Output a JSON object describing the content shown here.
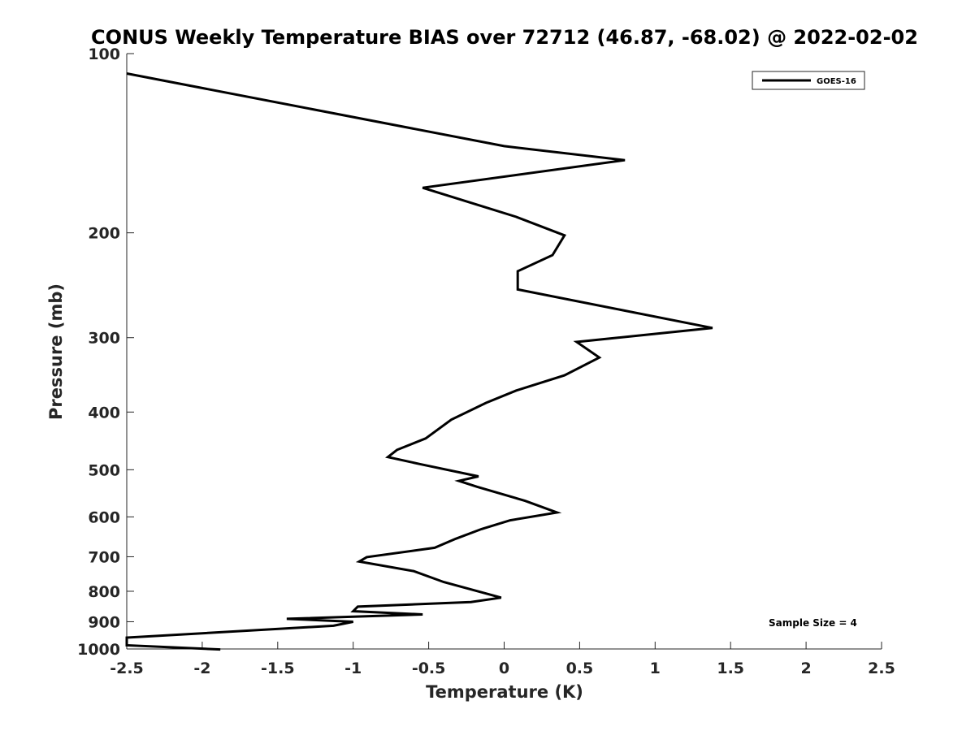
{
  "chart_data": {
    "type": "line",
    "title": "CONUS Weekly Temperature BIAS over 72712 (46.87, -68.02) @ 2022-02-02",
    "xlabel": "Temperature (K)",
    "ylabel": "Pressure (mb)",
    "xlim": [
      -2.5,
      2.5
    ],
    "ylim": [
      100,
      1000
    ],
    "y_scale": "log",
    "y_reversed": true,
    "grid": false,
    "x_ticks": [
      -2.5,
      -2,
      -1.5,
      -1,
      -0.5,
      0,
      0.5,
      1,
      1.5,
      2,
      2.5
    ],
    "x_tick_labels": [
      "-2.5",
      "-2",
      "-1.5",
      "-1",
      "-0.5",
      "0",
      "0.5",
      "1",
      "1.5",
      "2",
      "2.5"
    ],
    "y_ticks": [
      100,
      200,
      300,
      400,
      500,
      600,
      700,
      800,
      900,
      1000
    ],
    "y_tick_labels": [
      "100",
      "200",
      "300",
      "400",
      "500",
      "600",
      "700",
      "800",
      "900",
      "1000"
    ],
    "legend_position": "top-right",
    "series": [
      {
        "name": "GOES-16",
        "color": "#000000",
        "x": [
          -2.5,
          0,
          0.8,
          -0.54,
          0.08,
          0.4,
          0.32,
          0.09,
          0.09,
          1.38,
          0.48,
          0.63,
          0.4,
          0.08,
          -0.12,
          -0.35,
          -0.52,
          -0.71,
          -0.77,
          -0.56,
          -0.17,
          -0.3,
          -0.18,
          0.14,
          0.35,
          0.04,
          -0.15,
          -0.32,
          -0.46,
          -0.91,
          -0.96,
          -0.6,
          -0.4,
          -0.15,
          -0.02,
          -0.22,
          -0.97,
          -1.0,
          -0.54,
          -1.44,
          -1.0,
          -1.13,
          -2.5,
          -2.5,
          -1.88
        ],
        "y": [
          108,
          143,
          151,
          168,
          188,
          202,
          218,
          232,
          249,
          289,
          305,
          324,
          347,
          368,
          386,
          412,
          443,
          463,
          476,
          489,
          513,
          522,
          534,
          564,
          590,
          608,
          629,
          653,
          676,
          701,
          713,
          740,
          772,
          803,
          820,
          834,
          849,
          864,
          875,
          890,
          900,
          914,
          957,
          986,
          1002
        ]
      }
    ],
    "annotations": [
      "Sample Size = 4"
    ]
  }
}
